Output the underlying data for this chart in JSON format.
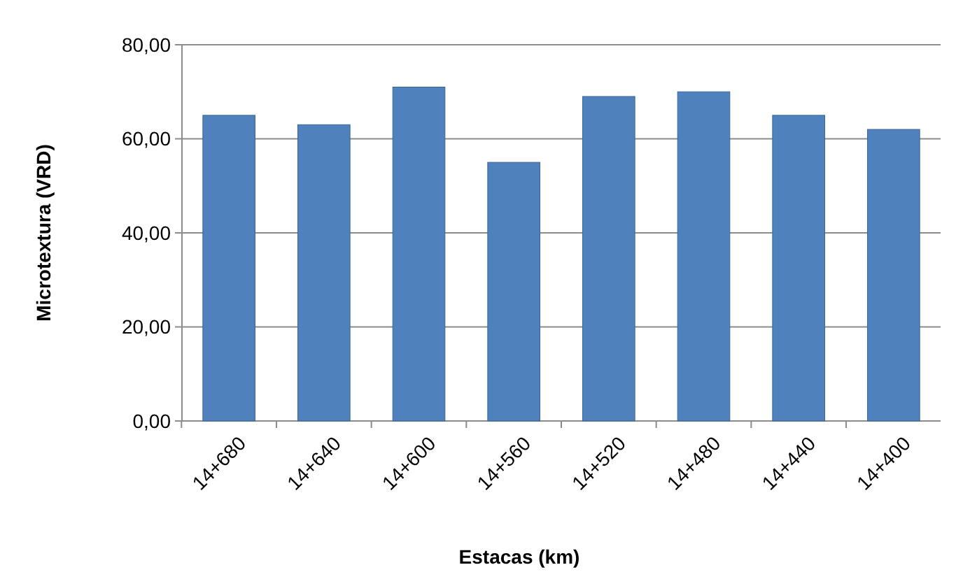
{
  "chart_data": {
    "type": "bar",
    "xlabel": "Estacas (km)",
    "ylabel": "Microtextura (VRD)",
    "categories": [
      "14+680",
      "14+640",
      "14+600",
      "14+560",
      "14+520",
      "14+480",
      "14+440",
      "14+400"
    ],
    "values": [
      65,
      63,
      71,
      55,
      69,
      70,
      65,
      62
    ],
    "color": "#4f81bd",
    "ylim": [
      0,
      80
    ],
    "yticks": [
      {
        "value": 0,
        "label": "0,00"
      },
      {
        "value": 20,
        "label": "20,00"
      },
      {
        "value": 40,
        "label": "40,00"
      },
      {
        "value": 60,
        "label": "60,00"
      },
      {
        "value": 80,
        "label": "80,00"
      }
    ],
    "grid": "y"
  }
}
